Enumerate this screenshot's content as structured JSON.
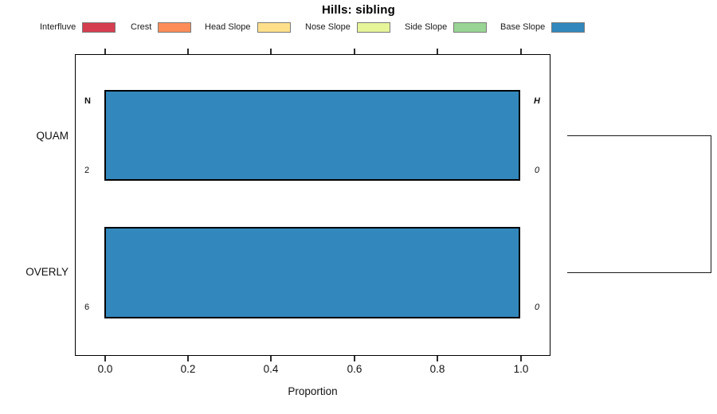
{
  "title": "Hills: sibling",
  "legend": {
    "items": [
      {
        "label": "Interfluve",
        "color": "#D53E4F"
      },
      {
        "label": "Crest",
        "color": "#FC8D59"
      },
      {
        "label": "Head Slope",
        "color": "#FEE08B"
      },
      {
        "label": "Nose Slope",
        "color": "#E6F598"
      },
      {
        "label": "Side Slope",
        "color": "#99D594"
      },
      {
        "label": "Base Slope",
        "color": "#3288BD"
      }
    ]
  },
  "chart_data": {
    "type": "bar",
    "orientation": "horizontal",
    "stacked": true,
    "title": "Hills: sibling",
    "xlabel": "Proportion",
    "xlim": [
      0,
      1
    ],
    "xticks": [
      "0.0",
      "0.2",
      "0.4",
      "0.6",
      "0.8",
      "1.0"
    ],
    "categories": [
      "QUAM",
      "OVERLY"
    ],
    "series": [
      {
        "name": "Interfluve",
        "color": "#D53E4F",
        "values": [
          0,
          0
        ]
      },
      {
        "name": "Crest",
        "color": "#FC8D59",
        "values": [
          0,
          0
        ]
      },
      {
        "name": "Head Slope",
        "color": "#FEE08B",
        "values": [
          0,
          0
        ]
      },
      {
        "name": "Nose Slope",
        "color": "#E6F598",
        "values": [
          0,
          0
        ]
      },
      {
        "name": "Side Slope",
        "color": "#99D594",
        "values": [
          0,
          0
        ]
      },
      {
        "name": "Base Slope",
        "color": "#3288BD",
        "values": [
          1.0,
          1.0
        ]
      }
    ],
    "annotation_columns": {
      "left_header": "N",
      "right_header": "H"
    },
    "row_annotations": [
      {
        "category": "QUAM",
        "n": "2",
        "h": "0"
      },
      {
        "category": "OVERLY",
        "n": "6",
        "h": "0"
      }
    ],
    "dendrogram": {
      "joined": [
        "QUAM",
        "OVERLY"
      ]
    },
    "legend_position": "top",
    "grid": false
  }
}
